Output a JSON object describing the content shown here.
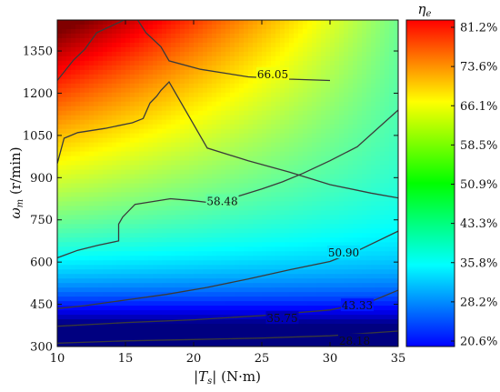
{
  "chart_data": {
    "type": "heatmap",
    "subtype": "filled-contour",
    "xlabel": "|T_s| (N·m)",
    "ylabel": "ω_m (r/min)",
    "colorbar_label": "η_e",
    "xlim": [
      10,
      35
    ],
    "ylim": [
      300,
      1460
    ],
    "x_ticks": [
      "10",
      "15",
      "20",
      "25",
      "30",
      "35"
    ],
    "y_ticks": [
      "300",
      "450",
      "600",
      "750",
      "900",
      "1050",
      "1200",
      "1350"
    ],
    "colorbar_ticks": [
      "81.2%",
      "73.6%",
      "66.1%",
      "58.5%",
      "50.9%",
      "43.3%",
      "35.8%",
      "28.2%",
      "20.6%"
    ],
    "colorbar_range": [
      20.6,
      81.2
    ],
    "colormap": "jet",
    "grid": false,
    "contours": [
      {
        "level": 66.05,
        "label": "66.05",
        "x": [
          10,
          11.2,
          12,
          12.9,
          14.9,
          15.9,
          16.5,
          17.6,
          18.2,
          20.5,
          24,
          27,
          30
        ],
        "y": [
          1245,
          1318,
          1355,
          1415,
          1460,
          1460,
          1415,
          1365,
          1315,
          1285,
          1258,
          1250,
          1245
        ]
      },
      {
        "level": 58.48,
        "label": "58.48",
        "x": [
          10,
          10.5,
          11.5,
          13.5,
          15.5,
          16.3,
          16.8,
          17.3,
          17.6,
          18.2,
          21,
          24,
          27,
          30,
          33,
          35
        ],
        "y": [
          950,
          1040,
          1060,
          1075,
          1095,
          1110,
          1165,
          1190,
          1210,
          1240,
          1005,
          960,
          920,
          875,
          845,
          828
        ]
      },
      {
        "level": 50.9,
        "label": "50.90",
        "x": [
          10,
          11.5,
          13,
          14.5,
          14.5,
          14.8,
          15.7,
          17,
          18.3,
          20,
          21,
          23,
          25,
          26.5,
          28,
          30,
          32,
          35
        ],
        "y": [
          615,
          642,
          660,
          675,
          735,
          760,
          805,
          815,
          825,
          818,
          812,
          830,
          860,
          885,
          915,
          960,
          1010,
          1140
        ]
      },
      {
        "level": 43.33,
        "label": "43.33",
        "x": [
          10,
          12,
          15,
          18,
          21,
          24,
          27,
          30,
          32,
          35
        ],
        "y": [
          435,
          445,
          465,
          485,
          510,
          540,
          572,
          602,
          640,
          710
        ]
      },
      {
        "level": 35.75,
        "label": "35.75",
        "x": [
          10,
          15,
          20,
          25,
          30,
          33,
          35
        ],
        "y": [
          372,
          385,
          395,
          410,
          430,
          460,
          500
        ]
      },
      {
        "level": 28.18,
        "label": "28.18",
        "x": [
          10,
          15,
          20,
          25,
          30,
          35
        ],
        "y": [
          312,
          320,
          325,
          330,
          338,
          355
        ]
      }
    ],
    "contour_label_positions": [
      {
        "label": "66.05",
        "x": 25.8,
        "y": 1266
      },
      {
        "label": "58.48",
        "x": 22.1,
        "y": 815
      },
      {
        "label": "50.90",
        "x": 31.0,
        "y": 633
      },
      {
        "label": "43.33",
        "x": 32.0,
        "y": 445
      },
      {
        "label": "35.75",
        "x": 26.5,
        "y": 400
      },
      {
        "label": "28.18",
        "x": 31.8,
        "y": 320
      }
    ]
  }
}
